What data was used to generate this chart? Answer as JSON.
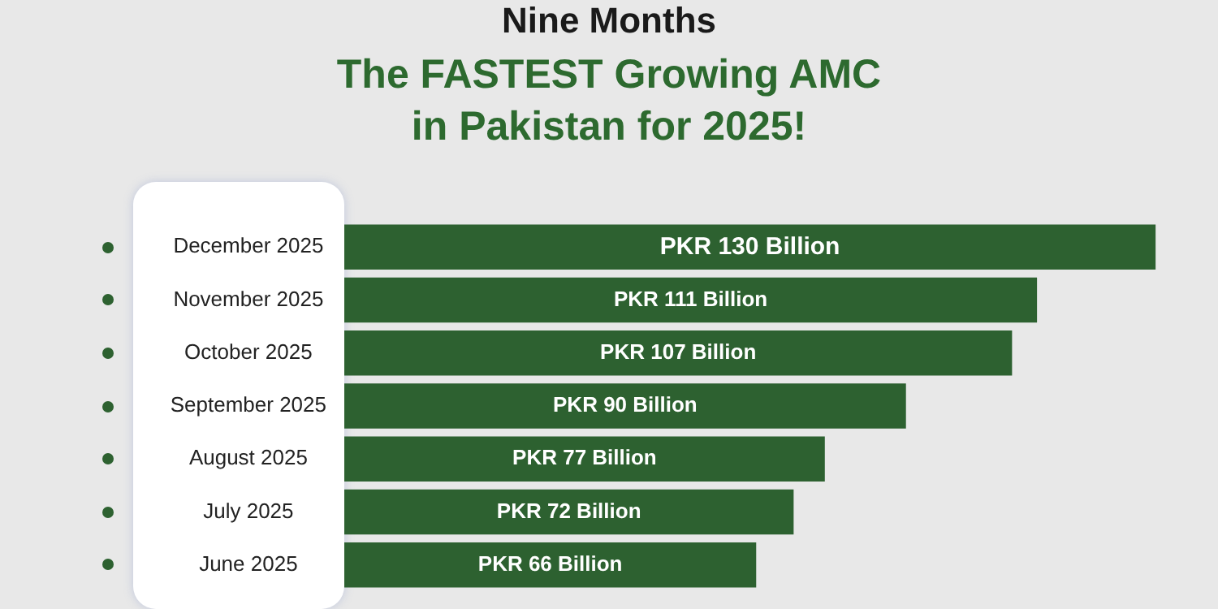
{
  "chart_data": {
    "type": "bar",
    "orientation": "horizontal",
    "title": "Nine Months",
    "subtitle": "The FASTEST Growing AMC in Pakistan for 2025!",
    "categories": [
      "December 2025",
      "November 2025",
      "October 2025",
      "September 2025",
      "August 2025",
      "July 2025",
      "June 2025"
    ],
    "values": [
      130,
      111,
      107,
      90,
      77,
      72,
      66
    ],
    "value_labels": [
      "PKR 130 Billion",
      "PKR 111 Billion",
      "PKR 107 Billion",
      "PKR 90 Billion",
      "PKR 77 Billion",
      "PKR 72 Billion",
      "PKR 66 Billion"
    ],
    "color": "#2d6130",
    "legend": false
  }
}
